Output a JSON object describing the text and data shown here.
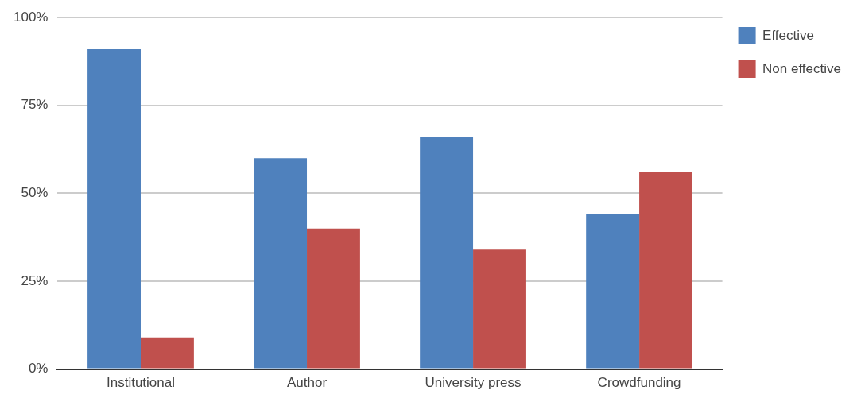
{
  "chart_data": {
    "type": "bar",
    "categories": [
      "Institutional",
      "Author",
      "University press",
      "Crowdfunding"
    ],
    "series": [
      {
        "name": "Effective",
        "color": "#4f81bd",
        "values": [
          91,
          60,
          66,
          44
        ]
      },
      {
        "name": "Non effective",
        "color": "#c0504d",
        "values": [
          9,
          40,
          34,
          56
        ]
      }
    ],
    "ylim": [
      0,
      100
    ],
    "yticks": [
      {
        "value": 0,
        "label": "0%"
      },
      {
        "value": 25,
        "label": "25%"
      },
      {
        "value": 50,
        "label": "50%"
      },
      {
        "value": 75,
        "label": "75%"
      },
      {
        "value": 100,
        "label": "100%"
      }
    ],
    "grid": "y",
    "legend": "top right"
  }
}
